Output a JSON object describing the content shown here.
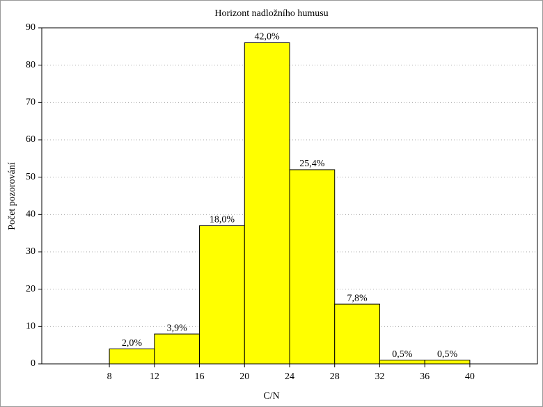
{
  "chart_data": {
    "type": "histogram",
    "title": "Horizont nadložního humusu",
    "x_label": "C/N",
    "y_label": "Počet pozorování",
    "bins": [
      8,
      12,
      16,
      20,
      24,
      28,
      32,
      36,
      40
    ],
    "values": [
      4,
      8,
      37,
      86,
      52,
      16,
      1,
      1
    ],
    "percent_labels": [
      "2,0%",
      "3,9%",
      "18,0%",
      "42,0%",
      "25,4%",
      "7,8%",
      "0,5%",
      "0,5%"
    ],
    "color": "#ffff00",
    "xlim": [
      2,
      46
    ],
    "xticks": [
      8,
      12,
      16,
      20,
      24,
      28,
      32,
      36,
      40
    ],
    "ylim": [
      0,
      90
    ],
    "yticks": [
      0,
      10,
      20,
      30,
      40,
      50,
      60,
      70,
      80,
      90
    ],
    "grid": true
  }
}
